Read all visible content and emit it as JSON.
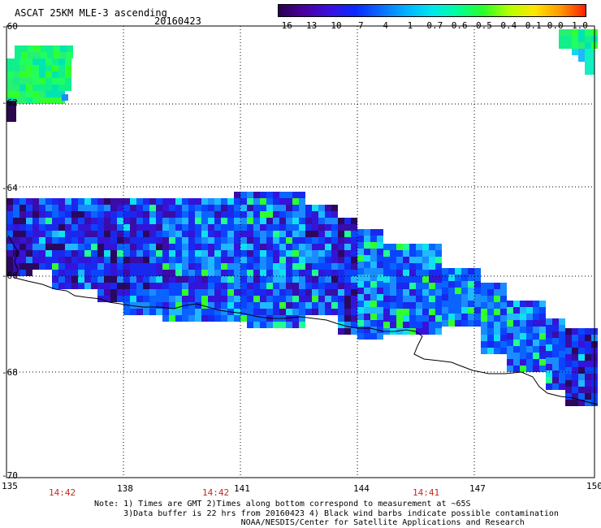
{
  "header": {
    "title": "ASCAT 25KM MLE-3 ascending",
    "date": "20160423"
  },
  "colorbar": {
    "labels": [
      "-16",
      "-13",
      "-10",
      "-7",
      "-4",
      "-1",
      "-0.7",
      "-0.6",
      "-0.5",
      "-0.4",
      "-0.1",
      "0.0",
      "1.0"
    ],
    "colors": [
      "#2a0050",
      "#4a00a0",
      "#3810e0",
      "#0a28ff",
      "#0a6cff",
      "#00b4ff",
      "#00e6ee",
      "#00ff9a",
      "#28ff28",
      "#b4ff00",
      "#ffe600",
      "#ff9a00",
      "#ff1e00"
    ]
  },
  "axes": {
    "x_labels": [
      "135",
      "138",
      "141",
      "144",
      "147",
      "150"
    ],
    "y_labels": [
      "-60",
      "-62",
      "-64",
      "-66",
      "-68",
      "-70"
    ],
    "time_labels": [
      "14:42",
      "14:42",
      "14:41"
    ]
  },
  "note": {
    "line1": "Note: 1) Times are GMT 2)Times along bottom correspond to measurement at ~65S",
    "line2": "      3)Data buffer is 22 hrs from 20160423 4) Black wind barbs indicate possible contamination",
    "line3": "                              NOAA/NESDIS/Center for Satellite Applications and Research"
  }
}
